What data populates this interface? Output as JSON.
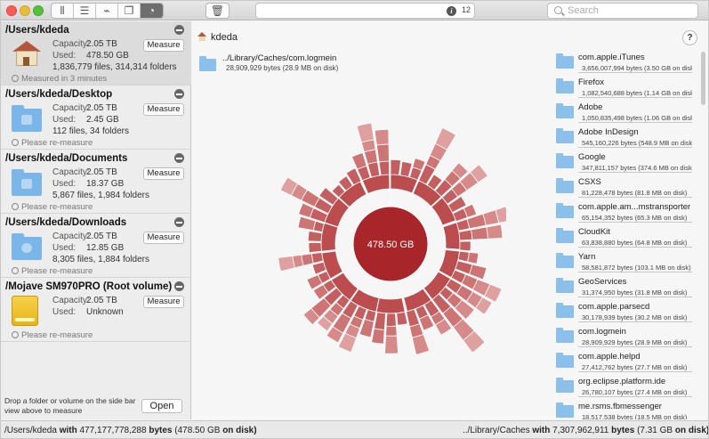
{
  "toolbar": {
    "view_buttons": [
      "columns-view-icon",
      "list-view-icon",
      "broom-icon",
      "window-stack-icon",
      "sunburst-view-icon"
    ],
    "trash_icon": "trash-icon",
    "info_count": "12",
    "search_placeholder": "Search"
  },
  "sidebar": {
    "volumes": [
      {
        "name": "/Users/kdeda",
        "capacity_label": "Capacity:",
        "capacity": "2.05 TB",
        "used_label": "Used:",
        "used": "478.50 GB",
        "files": "1,836,779 files, 314,314 folders",
        "button": "Measure",
        "status": "Measured in 3 minutes",
        "icon": "home-icon"
      },
      {
        "name": "/Users/kdeda/Desktop",
        "capacity_label": "Capacity:",
        "capacity": "2.05 TB",
        "used_label": "Used:",
        "used": "2.45 GB",
        "files": "112 files, 34 folders",
        "button": "Measure",
        "status": "Please re-measure",
        "icon": "desktop-folder-icon"
      },
      {
        "name": "/Users/kdeda/Documents",
        "capacity_label": "Capacity:",
        "capacity": "2.05 TB",
        "used_label": "Used:",
        "used": "18.37 GB",
        "files": "5,867 files, 1,984 folders",
        "button": "Measure",
        "status": "Please re-measure",
        "icon": "documents-folder-icon"
      },
      {
        "name": "/Users/kdeda/Downloads",
        "capacity_label": "Capacity:",
        "capacity": "2.05 TB",
        "used_label": "Used:",
        "used": "12.85 GB",
        "files": "8,305 files, 1,884 folders",
        "button": "Measure",
        "status": "Please re-measure",
        "icon": "downloads-folder-icon"
      },
      {
        "name": "/Mojave SM970PRO (Root volume)",
        "capacity_label": "Capacity:",
        "capacity": "2.05 TB",
        "used_label": "Used:",
        "used": "Unknown",
        "files": "",
        "button": "Measure",
        "status": "Please re-measure",
        "icon": "hard-drive-icon"
      }
    ],
    "drop_message": "Drop a folder or volume on the side bar view above to measure",
    "open_button": "Open"
  },
  "main": {
    "breadcrumb": "kdeda",
    "help": "?",
    "hovered": {
      "name": "../Library/Caches/com.logmein",
      "size": "28,909,929 bytes (28.9 MB on disk)"
    },
    "center_label": "478.50 GB",
    "list": [
      {
        "name": "com.apple.iTunes",
        "size": "3,656,007,994 bytes (3.50 GB on disk)"
      },
      {
        "name": "Firefox",
        "size": "1,082,540,688 bytes (1.14 GB on disk)"
      },
      {
        "name": "Adobe",
        "size": "1,050,835,498 bytes (1.06 GB on disk)"
      },
      {
        "name": "Adobe InDesign",
        "size": "545,160,226 bytes (548.9 MB on disk)"
      },
      {
        "name": "Google",
        "size": "347,811,157 bytes (374.6 MB on disk)"
      },
      {
        "name": "CSXS",
        "size": "81,228,478 bytes (81.8 MB on disk)"
      },
      {
        "name": "com.apple.am...mstransporter",
        "size": "65,154,352 bytes (65.3 MB on disk)"
      },
      {
        "name": "CloudKit",
        "size": "63,838,880 bytes (64.8 MB on disk)"
      },
      {
        "name": "Yarn",
        "size": "58,581,872 bytes (103.1 MB on disk)"
      },
      {
        "name": "GeoServices",
        "size": "31,374,950 bytes (31.8 MB on disk)"
      },
      {
        "name": "com.apple.parsecd",
        "size": "30,178,939 bytes (30.2 MB on disk)"
      },
      {
        "name": "com.logmein",
        "size": "28,909,929 bytes (28.9 MB on disk)"
      },
      {
        "name": "com.apple.helpd",
        "size": "27,412,762 bytes (27.7 MB on disk)"
      },
      {
        "name": "org.eclipse.platform.ide",
        "size": "26,780,107 bytes (27.4 MB on disk)"
      },
      {
        "name": "me.rsms.fbmessenger",
        "size": "18,517,538 bytes (18.5 MB on disk)"
      }
    ]
  },
  "statusbar": {
    "left_path": "/Users/kdeda",
    "left_with": "with",
    "left_bytes": "477,177,778,288",
    "left_bytes_word": "bytes",
    "left_paren": "(478.50 GB",
    "left_ondisk": "on disk)",
    "right_path": "../Library/Caches",
    "right_with": "with",
    "right_bytes": "7,307,962,911",
    "right_bytes_word": "bytes",
    "right_paren": "(7.31 GB",
    "right_ondisk": "on disk)"
  },
  "colors": {
    "ring": "#b03c3c",
    "center": "#a8262a",
    "accent_light": "#e4a9a9"
  }
}
